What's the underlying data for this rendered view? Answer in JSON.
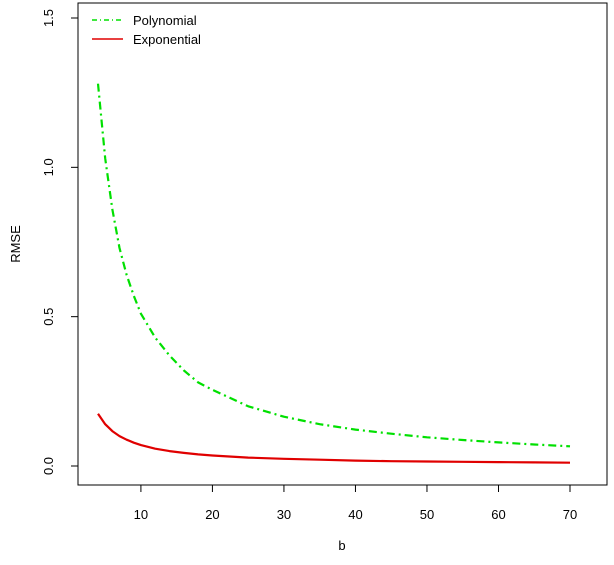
{
  "chart_data": {
    "type": "line",
    "xlabel": "b",
    "ylabel": "RMSE",
    "xlim": [
      4,
      70
    ],
    "ylim": [
      0,
      1.5
    ],
    "x_ticks": [
      10,
      20,
      30,
      40,
      50,
      60,
      70
    ],
    "y_ticks": [
      0.0,
      0.5,
      1.0,
      1.5
    ],
    "x_tick_labels": [
      "10",
      "20",
      "30",
      "40",
      "50",
      "60",
      "70"
    ],
    "y_tick_labels": [
      "0.0",
      "0.5",
      "1.0",
      "1.5"
    ],
    "legend_position": "top-left",
    "grid": false,
    "series": [
      {
        "name": "Polynomial",
        "color": "#00e000",
        "line_style": "dash-dot",
        "x": [
          4,
          5,
          6,
          7,
          8,
          9,
          10,
          12,
          14,
          16,
          18,
          20,
          25,
          30,
          35,
          40,
          45,
          50,
          55,
          60,
          65,
          70
        ],
        "y": [
          1.28,
          1.03,
          0.86,
          0.73,
          0.64,
          0.57,
          0.51,
          0.43,
          0.37,
          0.32,
          0.28,
          0.255,
          0.2,
          0.165,
          0.14,
          0.122,
          0.108,
          0.096,
          0.087,
          0.079,
          0.072,
          0.066
        ]
      },
      {
        "name": "Exponential",
        "color": "#e00000",
        "line_style": "solid",
        "x": [
          4,
          5,
          6,
          7,
          8,
          9,
          10,
          12,
          14,
          16,
          18,
          20,
          25,
          30,
          35,
          40,
          45,
          50,
          55,
          60,
          65,
          70
        ],
        "y": [
          0.175,
          0.14,
          0.117,
          0.1,
          0.088,
          0.078,
          0.07,
          0.058,
          0.05,
          0.044,
          0.039,
          0.035,
          0.028,
          0.024,
          0.021,
          0.018,
          0.016,
          0.015,
          0.014,
          0.013,
          0.012,
          0.011
        ]
      }
    ]
  }
}
